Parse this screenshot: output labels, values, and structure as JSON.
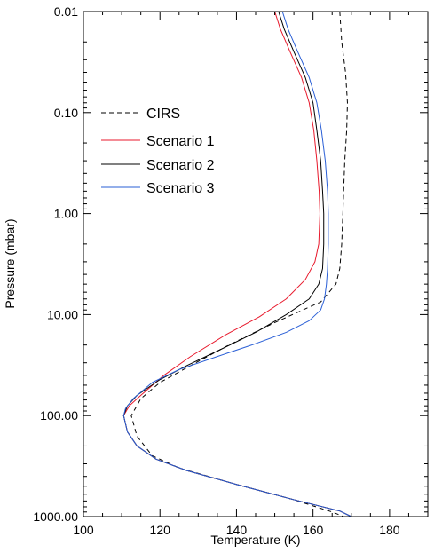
{
  "chart_data": {
    "type": "line",
    "xlabel": "Temperature (K)",
    "ylabel": "Pressure (mbar)",
    "xlim": [
      100,
      190
    ],
    "ylim": [
      1000,
      0.01
    ],
    "y_scale": "log",
    "x_ticks": [
      100,
      120,
      140,
      160,
      180
    ],
    "x_tick_labels": [
      "100",
      "120",
      "140",
      "160",
      "180"
    ],
    "y_ticks": [
      0.01,
      0.1,
      1,
      10,
      100,
      1000
    ],
    "y_tick_labels": [
      "0.01",
      "0.10",
      "1.00",
      "10.00",
      "100.00",
      "1000.00"
    ],
    "grid": false,
    "legend_position": "upper-left",
    "series": [
      {
        "name": "CIRS",
        "color": "#000000",
        "dash": "dashed",
        "points": [
          [
            167.0,
            0.01
          ],
          [
            167.5,
            0.02
          ],
          [
            168.5,
            0.04
          ],
          [
            169.0,
            0.08
          ],
          [
            168.8,
            0.15
          ],
          [
            168.3,
            0.3
          ],
          [
            168.0,
            0.6
          ],
          [
            167.8,
            1.0
          ],
          [
            167.5,
            2.0
          ],
          [
            167.0,
            3.5
          ],
          [
            166.0,
            5.0
          ],
          [
            162.0,
            7.5
          ],
          [
            150.0,
            12.0
          ],
          [
            138.0,
            20.0
          ],
          [
            128.0,
            32.0
          ],
          [
            120.0,
            47.0
          ],
          [
            115.0,
            68.0
          ],
          [
            112.5,
            100.0
          ],
          [
            114.0,
            160.0
          ],
          [
            118.0,
            250.0
          ],
          [
            125.0,
            330.0
          ],
          [
            140.0,
            480.0
          ],
          [
            155.0,
            680.0
          ],
          [
            165.0,
            900.0
          ],
          [
            168.0,
            1000.0
          ]
        ]
      },
      {
        "name": "Scenario 1",
        "color": "#e8192c",
        "dash": "solid",
        "points": [
          [
            150.0,
            0.01
          ],
          [
            151.5,
            0.015
          ],
          [
            154.0,
            0.025
          ],
          [
            157.0,
            0.045
          ],
          [
            159.0,
            0.08
          ],
          [
            160.2,
            0.15
          ],
          [
            161.0,
            0.3
          ],
          [
            161.6,
            0.6
          ],
          [
            161.8,
            1.0
          ],
          [
            161.5,
            2.0
          ],
          [
            160.5,
            3.0
          ],
          [
            158.0,
            4.5
          ],
          [
            153.0,
            7.0
          ],
          [
            146.0,
            10.5
          ],
          [
            137.0,
            16.0
          ],
          [
            128.0,
            26.0
          ],
          [
            121.0,
            40.0
          ],
          [
            115.0,
            63.0
          ],
          [
            112.0,
            80.0
          ],
          [
            110.5,
            100.0
          ],
          [
            111.5,
            145.0
          ],
          [
            114.0,
            200.0
          ],
          [
            119.0,
            270.0
          ],
          [
            127.0,
            350.0
          ],
          [
            140.0,
            480.0
          ],
          [
            155.0,
            680.0
          ],
          [
            167.0,
            880.0
          ],
          [
            170.0,
            1000.0
          ]
        ]
      },
      {
        "name": "Scenario 2",
        "color": "#000000",
        "dash": "solid",
        "points": [
          [
            151.0,
            0.01
          ],
          [
            152.5,
            0.015
          ],
          [
            155.0,
            0.025
          ],
          [
            158.0,
            0.045
          ],
          [
            160.0,
            0.08
          ],
          [
            161.0,
            0.15
          ],
          [
            162.0,
            0.3
          ],
          [
            162.5,
            0.6
          ],
          [
            162.8,
            1.0
          ],
          [
            162.8,
            2.0
          ],
          [
            162.5,
            3.5
          ],
          [
            161.5,
            5.0
          ],
          [
            159.0,
            7.0
          ],
          [
            153.0,
            10.0
          ],
          [
            145.0,
            15.0
          ],
          [
            136.0,
            22.0
          ],
          [
            127.0,
            32.0
          ],
          [
            120.0,
            44.0
          ],
          [
            114.0,
            63.0
          ],
          [
            111.5,
            80.0
          ],
          [
            110.5,
            100.0
          ],
          [
            111.5,
            145.0
          ],
          [
            114.0,
            200.0
          ],
          [
            119.0,
            270.0
          ],
          [
            127.0,
            350.0
          ],
          [
            140.0,
            480.0
          ],
          [
            155.0,
            680.0
          ],
          [
            167.0,
            880.0
          ],
          [
            170.0,
            1000.0
          ]
        ]
      },
      {
        "name": "Scenario 3",
        "color": "#2a5fd6",
        "dash": "solid",
        "points": [
          [
            152.0,
            0.01
          ],
          [
            153.5,
            0.015
          ],
          [
            156.0,
            0.025
          ],
          [
            159.0,
            0.045
          ],
          [
            161.0,
            0.08
          ],
          [
            162.2,
            0.15
          ],
          [
            163.2,
            0.3
          ],
          [
            163.8,
            0.6
          ],
          [
            164.0,
            1.0
          ],
          [
            164.0,
            2.0
          ],
          [
            163.8,
            3.5
          ],
          [
            163.5,
            5.0
          ],
          [
            163.0,
            7.0
          ],
          [
            162.0,
            9.0
          ],
          [
            159.0,
            11.5
          ],
          [
            153.0,
            15.0
          ],
          [
            144.0,
            20.0
          ],
          [
            135.0,
            26.0
          ],
          [
            125.0,
            35.0
          ],
          [
            118.0,
            47.0
          ],
          [
            113.0,
            68.0
          ],
          [
            111.0,
            85.0
          ],
          [
            110.5,
            100.0
          ],
          [
            111.5,
            145.0
          ],
          [
            114.0,
            200.0
          ],
          [
            119.0,
            270.0
          ],
          [
            127.0,
            350.0
          ],
          [
            140.0,
            480.0
          ],
          [
            155.0,
            680.0
          ],
          [
            167.0,
            880.0
          ],
          [
            170.0,
            1000.0
          ]
        ]
      }
    ]
  }
}
